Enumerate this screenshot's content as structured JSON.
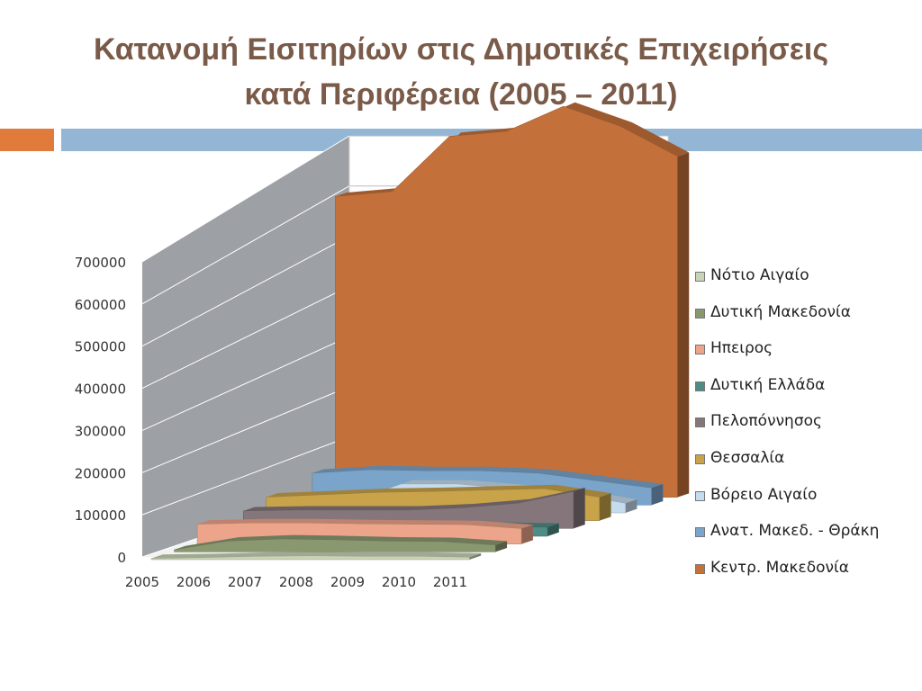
{
  "slide": {
    "title_line1": "Κατανομή Εισιτηρίων στις Δημοτικές Επιχειρήσεις",
    "title_line2": "κατά Περιφέρεια (2005 – 2011)"
  },
  "chart_data": {
    "type": "area",
    "subtype": "3d-area",
    "title": "",
    "xlabel": "",
    "ylabel": "",
    "categories": [
      "2005",
      "2006",
      "2007",
      "2008",
      "2009",
      "2010",
      "2011"
    ],
    "yticks": [
      "0",
      "100000",
      "200000",
      "300000",
      "400000",
      "500000",
      "600000",
      "700000"
    ],
    "ylim": [
      0,
      700000
    ],
    "grid": true,
    "legend_position": "right",
    "series": [
      {
        "name": "Νότιο Αιγαίο",
        "color": "#c9d3b6",
        "values": [
          3000,
          5000,
          8000,
          9000,
          8000,
          8000,
          6000
        ]
      },
      {
        "name": "Δυτική Μακεδονία",
        "color": "#8a9870",
        "values": [
          5000,
          25000,
          30000,
          28000,
          25000,
          24000,
          16000
        ]
      },
      {
        "name": "Ηπειρος",
        "color": "#eca48a",
        "values": [
          45000,
          48000,
          48000,
          46000,
          45000,
          44000,
          35000
        ]
      },
      {
        "name": "Δυτική Ελλάδα",
        "color": "#4f8c86",
        "values": [
          20000,
          20000,
          22000,
          22000,
          22000,
          22000,
          20000
        ]
      },
      {
        "name": "Πελοπόννησος",
        "color": "#84767a",
        "values": [
          38000,
          40000,
          40000,
          40000,
          45000,
          55000,
          80000
        ]
      },
      {
        "name": "Θεσσαλία",
        "color": "#c8a34a",
        "values": [
          50000,
          55000,
          60000,
          62000,
          65000,
          68000,
          50000
        ]
      },
      {
        "name": "Βόρειο Αιγαίο",
        "color": "#c5dbee",
        "values": [
          5000,
          20000,
          60000,
          60000,
          50000,
          40000,
          20000
        ]
      },
      {
        "name": "Ανατ. Μακεδ. - Θράκη",
        "color": "#7aa4c9",
        "values": [
          65000,
          72000,
          70000,
          70000,
          65000,
          50000,
          35000
        ]
      },
      {
        "name": "Κεντρ. Μακεδονία",
        "color": "#c4703a",
        "values": [
          600000,
          610000,
          720000,
          730000,
          780000,
          740000,
          680000
        ]
      }
    ]
  }
}
